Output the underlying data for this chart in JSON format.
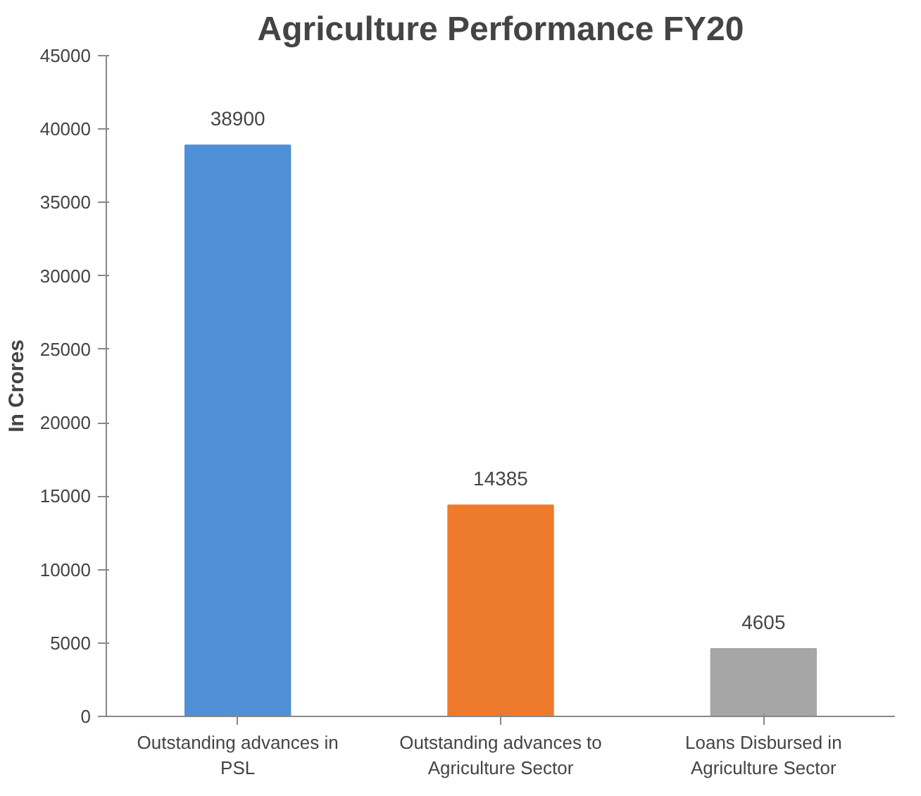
{
  "chart_data": {
    "type": "bar",
    "title": "Agriculture Performance FY20",
    "ylabel": "In Crores",
    "categories": [
      "Outstanding advances in PSL",
      "Outstanding advances to Agriculture Sector",
      "Loans Disbursed in Agriculture Sector"
    ],
    "values": [
      38900,
      14385,
      4605
    ],
    "colors": [
      "#4f8fd6",
      "#ee7a2c",
      "#a6a6a6"
    ],
    "ylim": [
      0,
      45000
    ],
    "yticks": [
      0,
      5000,
      10000,
      15000,
      20000,
      25000,
      30000,
      35000,
      40000,
      45000
    ],
    "data_labels": true
  }
}
